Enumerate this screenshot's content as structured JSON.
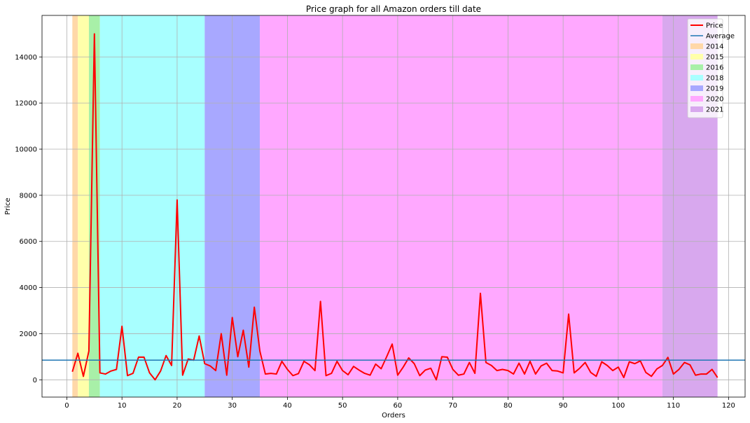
{
  "chart_data": {
    "type": "line",
    "title": "Price graph for all Amazon orders till date",
    "xlabel": "Orders",
    "ylabel": "Price",
    "xlim": [
      -4.5,
      123
    ],
    "ylim": [
      -750,
      15800
    ],
    "xticks": [
      0,
      10,
      20,
      30,
      40,
      50,
      60,
      70,
      80,
      90,
      100,
      110,
      120
    ],
    "yticks": [
      0,
      2000,
      4000,
      6000,
      8000,
      10000,
      12000,
      14000
    ],
    "grid": true,
    "legend_position": "top-right",
    "year_bands": [
      {
        "name": "2014",
        "start": 1,
        "end": 2,
        "color": "#ffd8a8"
      },
      {
        "name": "2015",
        "start": 2,
        "end": 4,
        "color": "#ffffaa"
      },
      {
        "name": "2016",
        "start": 4,
        "end": 6,
        "color": "#a8f0a8"
      },
      {
        "name": "2018",
        "start": 6,
        "end": 25,
        "color": "#a8ffff"
      },
      {
        "name": "2019",
        "start": 25,
        "end": 35,
        "color": "#a8a8ff"
      },
      {
        "name": "2020",
        "start": 35,
        "end": 108,
        "color": "#ffa8ff"
      },
      {
        "name": "2021",
        "start": 108,
        "end": 118,
        "color": "#d8a8ee"
      }
    ],
    "series": [
      {
        "name": "Price",
        "color": "#ff0000",
        "x": [
          1,
          2,
          3,
          4,
          5,
          6,
          7,
          8,
          9,
          10,
          11,
          12,
          13,
          14,
          15,
          16,
          17,
          18,
          19,
          20,
          21,
          22,
          23,
          24,
          25,
          26,
          27,
          28,
          29,
          30,
          31,
          32,
          33,
          34,
          35,
          36,
          37,
          38,
          39,
          40,
          41,
          42,
          43,
          44,
          45,
          46,
          47,
          48,
          49,
          50,
          51,
          52,
          53,
          54,
          55,
          56,
          57,
          58,
          59,
          60,
          61,
          62,
          63,
          64,
          65,
          66,
          67,
          68,
          69,
          70,
          71,
          72,
          73,
          74,
          75,
          76,
          77,
          78,
          79,
          80,
          81,
          82,
          83,
          84,
          85,
          86,
          87,
          88,
          89,
          90,
          91,
          92,
          93,
          94,
          95,
          96,
          97,
          98,
          99,
          100,
          101,
          102,
          103,
          104,
          105,
          106,
          107,
          108,
          109,
          110,
          111,
          112,
          113,
          114,
          115,
          116,
          117,
          118
        ],
        "values": [
          350,
          1150,
          150,
          1250,
          15000,
          300,
          250,
          380,
          450,
          2320,
          180,
          280,
          980,
          980,
          300,
          0,
          380,
          1050,
          620,
          7800,
          200,
          900,
          850,
          1900,
          700,
          600,
          400,
          2000,
          200,
          2700,
          1000,
          2150,
          550,
          3150,
          1250,
          250,
          280,
          250,
          800,
          450,
          180,
          270,
          800,
          650,
          400,
          3400,
          180,
          280,
          800,
          400,
          220,
          580,
          420,
          280,
          200,
          680,
          480,
          1000,
          1550,
          200,
          550,
          950,
          700,
          180,
          420,
          500,
          0,
          1000,
          980,
          450,
          200,
          250,
          750,
          280,
          3750,
          750,
          620,
          400,
          450,
          400,
          250,
          720,
          250,
          800,
          250,
          600,
          720,
          400,
          380,
          300,
          2850,
          300,
          500,
          750,
          320,
          150,
          780,
          620,
          400,
          550,
          100,
          780,
          700,
          820,
          320,
          150,
          470,
          620,
          970,
          250,
          450,
          750,
          650,
          200,
          250,
          250,
          450,
          100
        ]
      },
      {
        "name": "Average",
        "color": "#1f77b4",
        "values": [
          850
        ]
      }
    ]
  }
}
